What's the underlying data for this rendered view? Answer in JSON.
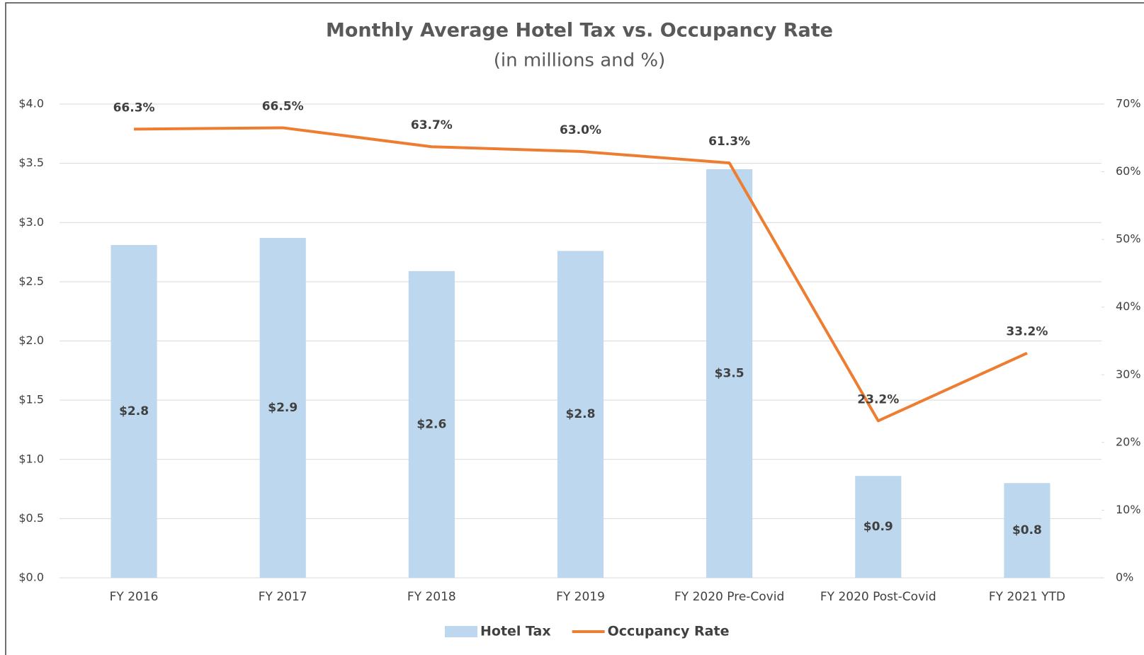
{
  "chart_data": {
    "type": "bar",
    "title": "Monthly Average Hotel Tax vs. Occupancy Rate",
    "subtitle": "(in millions and %)",
    "categories": [
      "FY 2016",
      "FY 2017",
      "FY 2018",
      "FY 2019",
      "FY 2020 Pre-Covid",
      "FY 2020 Post-Covid",
      "FY 2021 YTD"
    ],
    "series": [
      {
        "name": "Hotel Tax",
        "type": "bar",
        "color": "#bdd7ee",
        "values": [
          2.81,
          2.87,
          2.59,
          2.76,
          3.45,
          0.86,
          0.8
        ],
        "value_labels": [
          "$2.8",
          "$2.9",
          "$2.6",
          "$2.8",
          "$3.5",
          "$0.9",
          "$0.8"
        ]
      },
      {
        "name": "Occupancy Rate",
        "type": "line",
        "axis": "y2",
        "color": "#ed7d31",
        "values": [
          66.3,
          66.5,
          63.7,
          63.0,
          61.3,
          23.2,
          33.2
        ],
        "value_labels": [
          "66.3%",
          "66.5%",
          "63.7%",
          "63.0%",
          "61.3%",
          "23.2%",
          "33.2%"
        ]
      }
    ],
    "ylim": [
      0,
      4
    ],
    "yticks": [
      {
        "value": 0,
        "label": "$0.0"
      },
      {
        "value": 0.5,
        "label": "$0.5"
      },
      {
        "value": 1,
        "label": "$1.0"
      },
      {
        "value": 1.5,
        "label": "$1.5"
      },
      {
        "value": 2,
        "label": "$2.0"
      },
      {
        "value": 2.5,
        "label": "$2.5"
      },
      {
        "value": 3,
        "label": "$3.0"
      },
      {
        "value": 3.5,
        "label": "$3.5"
      },
      {
        "value": 4,
        "label": "$4.0"
      }
    ],
    "y2lim": [
      0,
      70
    ],
    "y2ticks": [
      {
        "value": 0,
        "label": "0%"
      },
      {
        "value": 10,
        "label": "10%"
      },
      {
        "value": 20,
        "label": "20%"
      },
      {
        "value": 30,
        "label": "30%"
      },
      {
        "value": 40,
        "label": "40%"
      },
      {
        "value": 50,
        "label": "50%"
      },
      {
        "value": 60,
        "label": "60%"
      },
      {
        "value": 70,
        "label": "70%"
      }
    ],
    "grid": true,
    "legend": "bottom"
  }
}
